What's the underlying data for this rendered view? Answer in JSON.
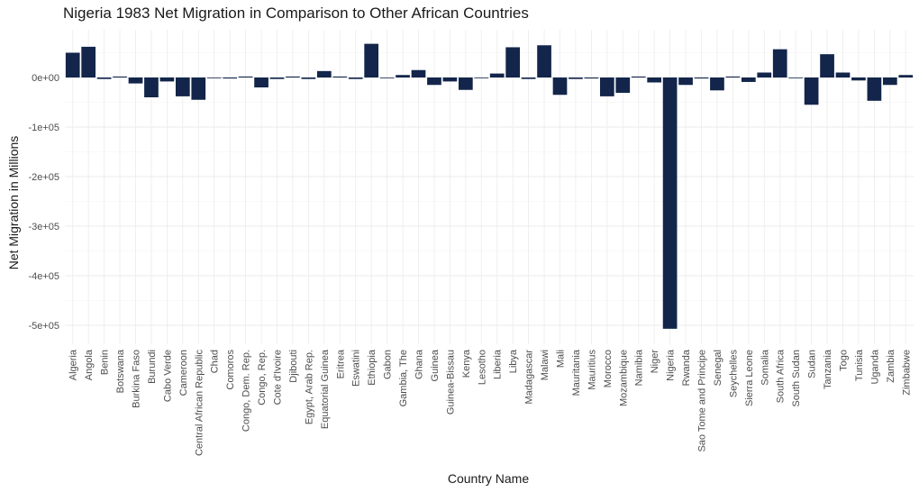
{
  "chart_data": {
    "type": "bar",
    "title": "Nigeria 1983 Net Migration in Comparison to Other African Countries",
    "xlabel": "Country Name",
    "ylabel": "Net Migration in Millions",
    "bar_color": "#13254a",
    "grid": true,
    "ylim": [
      -540000,
      95000
    ],
    "yticks": [
      0,
      -100000,
      -200000,
      -300000,
      -400000,
      -500000
    ],
    "ytick_labels": [
      "0e+00",
      "-1e+05",
      "-2e+05",
      "-3e+05",
      "-4e+05",
      "-5e+05"
    ],
    "categories": [
      "Algeria",
      "Angola",
      "Benin",
      "Botswana",
      "Burkina Faso",
      "Burundi",
      "Cabo Verde",
      "Cameroon",
      "Central African Republic",
      "Chad",
      "Comoros",
      "Congo, Dem. Rep.",
      "Congo, Rep.",
      "Cote d'Ivoire",
      "Djibouti",
      "Egypt, Arab Rep.",
      "Equatorial Guinea",
      "Eritrea",
      "Eswatini",
      "Ethiopia",
      "Gabon",
      "Gambia, The",
      "Ghana",
      "Guinea",
      "Guinea-Bissau",
      "Kenya",
      "Lesotho",
      "Liberia",
      "Libya",
      "Madagascar",
      "Malawi",
      "Mali",
      "Mauritania",
      "Mauritius",
      "Morocco",
      "Mozambique",
      "Namibia",
      "Niger",
      "Nigeria",
      "Rwanda",
      "Sao Tome and Principe",
      "Senegal",
      "Seychelles",
      "Sierra Leone",
      "Somalia",
      "South Africa",
      "South Sudan",
      "Sudan",
      "Tanzania",
      "Togo",
      "Tunisia",
      "Uganda",
      "Zambia",
      "Zimbabwe"
    ],
    "values": [
      50000,
      62000,
      -3000,
      2000,
      -12000,
      -40000,
      -8000,
      -38000,
      -45000,
      0,
      -2000,
      2000,
      -20000,
      -3000,
      2000,
      -3000,
      13000,
      2000,
      -3000,
      68000,
      0,
      5000,
      15000,
      -15000,
      -8000,
      -25000,
      0,
      8000,
      61000,
      -3000,
      65000,
      -35000,
      -3000,
      -2000,
      -38000,
      -31000,
      2000,
      -10000,
      -507000,
      -15000,
      -2000,
      -26000,
      2000,
      -9000,
      10000,
      57000,
      0,
      -55000,
      47000,
      10000,
      -6000,
      -47000,
      -15000,
      5000
    ]
  }
}
